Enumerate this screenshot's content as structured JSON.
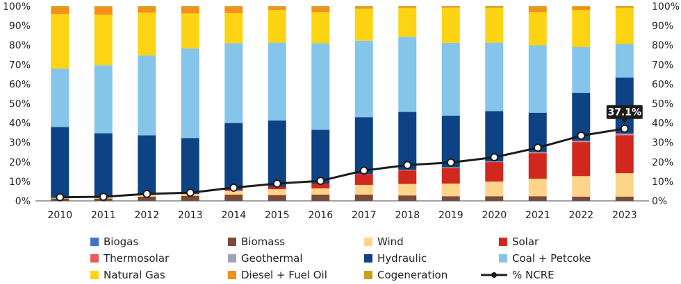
{
  "chart_data": {
    "type": "bar",
    "stacked": true,
    "categories": [
      "2010",
      "2011",
      "2012",
      "2013",
      "2014",
      "2015",
      "2016",
      "2017",
      "2018",
      "2019",
      "2020",
      "2021",
      "2022",
      "2023"
    ],
    "ylim": [
      0,
      100
    ],
    "yticks": [
      "0%",
      "10%",
      "20%",
      "30%",
      "40%",
      "50%",
      "60%",
      "70%",
      "80%",
      "90%",
      "100%"
    ],
    "grid": false,
    "legend_position": "bottom",
    "series": [
      {
        "name": "Biogas",
        "color": "#4472c4",
        "values": [
          0.2,
          0.2,
          0.2,
          0.2,
          0.2,
          0.2,
          0.2,
          0.2,
          0.2,
          0.2,
          0.2,
          0.2,
          0.2,
          0.2
        ]
      },
      {
        "name": "Biomass",
        "color": "#7b4a3a",
        "values": [
          1.0,
          1.0,
          2.0,
          2.4,
          3.0,
          2.8,
          3.0,
          3.0,
          2.6,
          2.2,
          2.2,
          2.2,
          2.0,
          2.0
        ]
      },
      {
        "name": "Wind",
        "color": "#fdd48a",
        "values": [
          0.3,
          0.5,
          0.8,
          0.9,
          2.0,
          3.0,
          3.2,
          5.0,
          5.9,
          6.5,
          7.5,
          9.0,
          10.5,
          12.0
        ]
      },
      {
        "name": "Solar",
        "color": "#d0281f",
        "values": [
          0.0,
          0.0,
          0.1,
          0.1,
          0.5,
          1.3,
          2.5,
          5.5,
          7.0,
          8.0,
          10.0,
          13.0,
          17.5,
          19.5
        ]
      },
      {
        "name": "Thermosolar",
        "color": "#e85c5c",
        "values": [
          0,
          0,
          0,
          0,
          0,
          0,
          0,
          0,
          0,
          0,
          0,
          0.3,
          0.3,
          0.4
        ]
      },
      {
        "name": "Geothermal",
        "color": "#9fa3b7",
        "values": [
          0,
          0,
          0,
          0,
          0,
          0,
          0,
          0.1,
          0.3,
          0.4,
          0.4,
          0.4,
          0.4,
          0.5
        ]
      },
      {
        "name": "Hydraulic",
        "color": "#0d4384",
        "values": [
          36.5,
          33.0,
          30.6,
          28.7,
          34.3,
          34.0,
          27.6,
          29.2,
          29.7,
          26.5,
          25.8,
          20.2,
          24.6,
          28.8
        ]
      },
      {
        "name": "Coal + Petcoke",
        "color": "#85c5ea",
        "values": [
          30.0,
          35.0,
          41.0,
          46.0,
          41.0,
          40.0,
          44.5,
          39.3,
          38.6,
          37.4,
          35.2,
          34.6,
          23.5,
          17.2
        ]
      },
      {
        "name": "Natural Gas",
        "color": "#fcd414",
        "values": [
          28.0,
          26.0,
          22.0,
          18.0,
          15.5,
          16.8,
          16.0,
          16.4,
          14.7,
          18.0,
          17.8,
          17.1,
          19.0,
          18.5
        ]
      },
      {
        "name": "Diesel + Fuel Oil",
        "color": "#f39019",
        "values": [
          3.5,
          4.0,
          2.8,
          3.2,
          3.0,
          1.4,
          2.5,
          0.8,
          0.6,
          0.3,
          0.4,
          2.5,
          1.8,
          0.5
        ]
      },
      {
        "name": "Cogeneration",
        "color": "#c8a020",
        "values": [
          0.5,
          0.3,
          0.5,
          0.5,
          0.5,
          0.5,
          0.5,
          0.5,
          0.4,
          0.5,
          0.5,
          0.5,
          0.2,
          0.4
        ]
      }
    ],
    "line_series": {
      "name": "% NCRE",
      "color": "#1c1c1c",
      "values": [
        1.9,
        2.1,
        3.6,
        4.2,
        6.8,
        8.9,
        10.3,
        15.6,
        18.4,
        19.7,
        22.4,
        27.3,
        33.5,
        37.1
      ]
    },
    "annotations": [
      {
        "category": "2023",
        "text": "37.1%"
      }
    ]
  }
}
